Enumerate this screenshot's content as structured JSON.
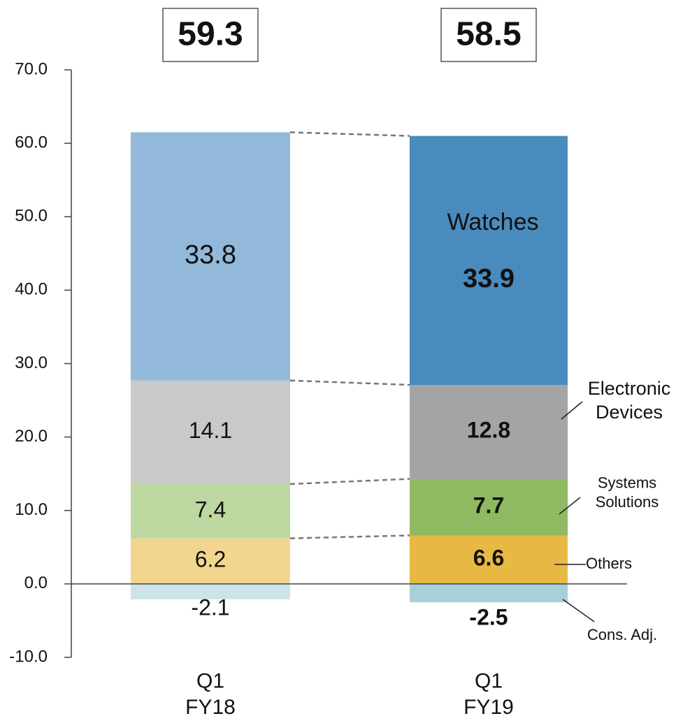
{
  "chart_data": {
    "type": "stacked-bar",
    "categories": [
      "Q1\nFY18",
      "Q1\nFY19"
    ],
    "totals": [
      59.3,
      58.5
    ],
    "series": [
      {
        "name": "Others",
        "colors": [
          "#f2d690",
          "#e8b942"
        ],
        "values": [
          6.2,
          6.6
        ]
      },
      {
        "name": "Systems\nSolutions",
        "colors": [
          "#bdd7a1",
          "#90ba62"
        ],
        "values": [
          7.4,
          7.7
        ]
      },
      {
        "name": "Electronic\nDevices",
        "colors": [
          "#c8c9c8",
          "#a3a4a3"
        ],
        "values": [
          14.1,
          12.8
        ]
      },
      {
        "name": "Watches",
        "colors": [
          "#93b9da",
          "#4a8bbd"
        ],
        "values": [
          33.8,
          33.9
        ]
      },
      {
        "name": "Cons. Adj.",
        "colors": [
          "#cde3ea",
          "#a9d0da"
        ],
        "values": [
          -2.1,
          -2.5
        ]
      }
    ],
    "ylim": [
      -10,
      70
    ],
    "yticks": [
      {
        "value": -10,
        "label": "-10.0"
      },
      {
        "value": 0,
        "label": "0.0"
      },
      {
        "value": 10,
        "label": "10.0"
      },
      {
        "value": 20,
        "label": "20.0"
      },
      {
        "value": 30,
        "label": "30.0"
      },
      {
        "value": 40,
        "label": "40.0"
      },
      {
        "value": 50,
        "label": "50.0"
      },
      {
        "value": 60,
        "label": "60.0"
      },
      {
        "value": 70,
        "label": "70.0"
      }
    ]
  }
}
